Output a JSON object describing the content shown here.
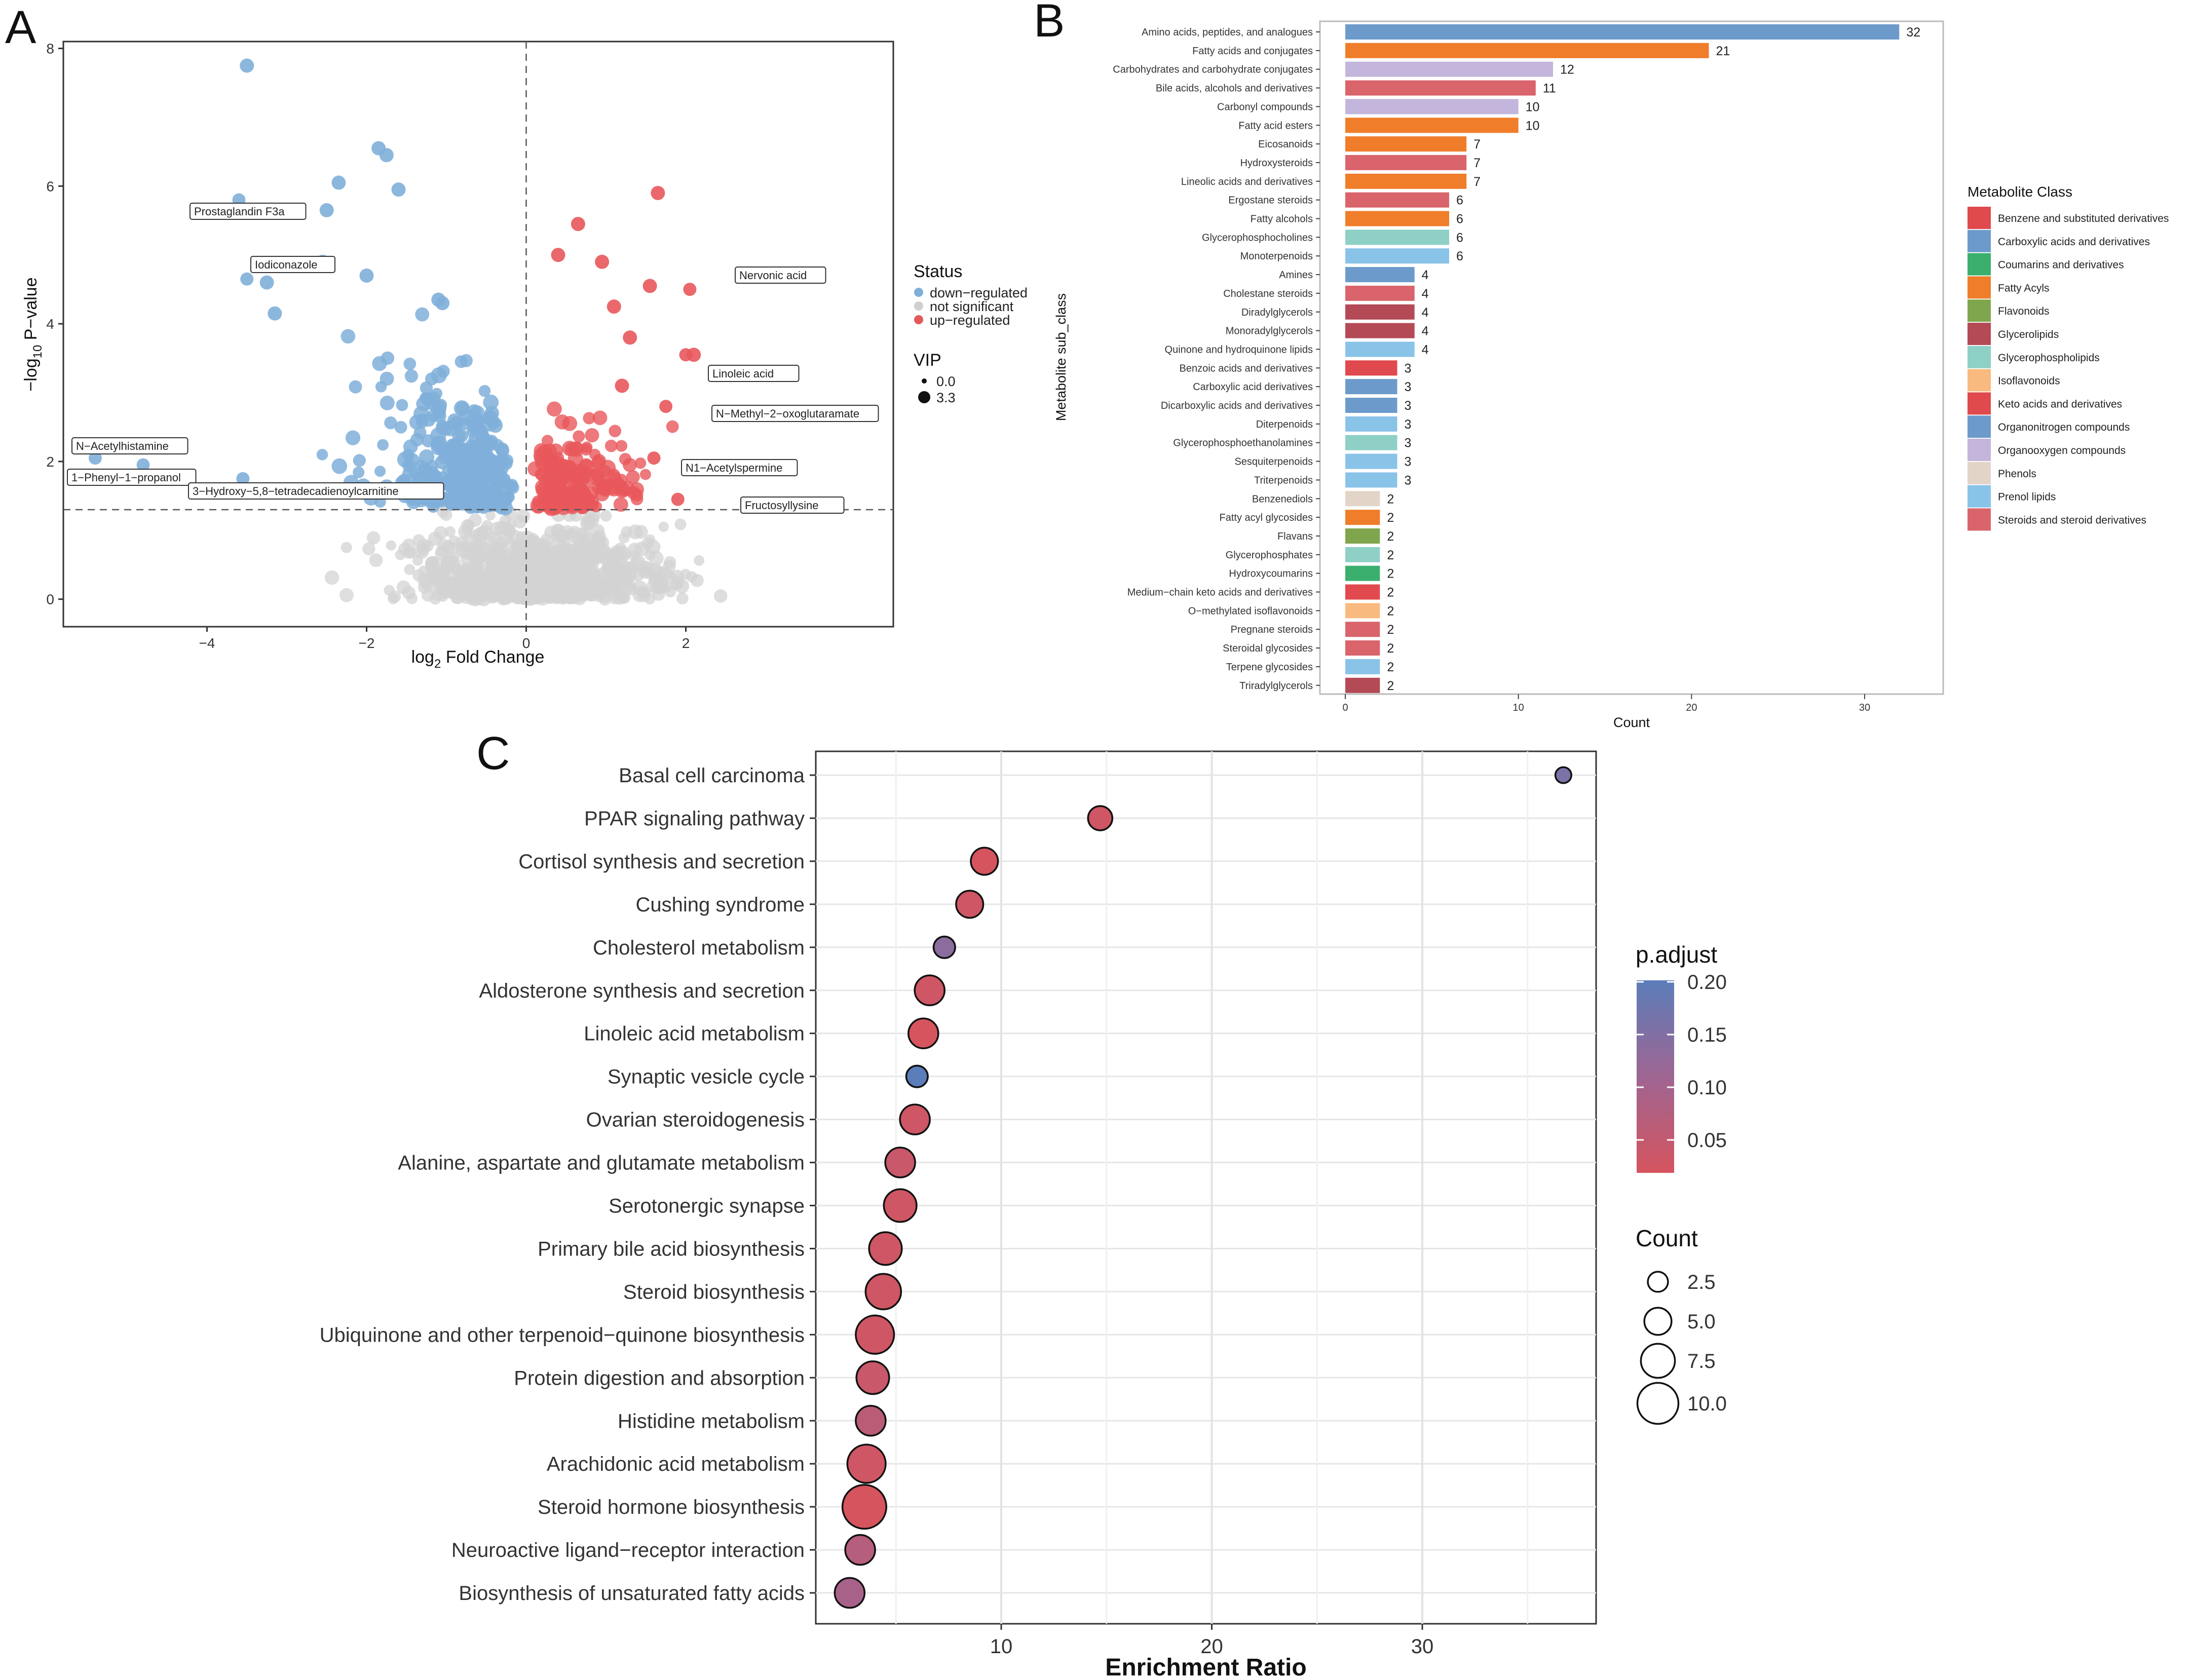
{
  "panel_letters": [
    "A",
    "B",
    "C"
  ],
  "chart_data": [
    {
      "panel": "A",
      "type": "scatter",
      "title": "",
      "xlabel": "log2 Fold Change",
      "xlabel_main": "log",
      "xlabel_sub": "2",
      "xlabel_rest": " Fold Change",
      "ylabel": "-log10 P-value",
      "ylabel_main": "−log",
      "ylabel_sub": "10",
      "ylabel_rest": " P−value",
      "xlim": [
        -5.8,
        4.6
      ],
      "ylim": [
        -0.4,
        8.1
      ],
      "xticks": [
        -4,
        -2,
        0,
        2
      ],
      "xtick_labels": [
        "−4",
        "−2",
        "0",
        "2"
      ],
      "yticks": [
        0,
        2,
        4,
        6,
        8
      ],
      "fc_threshold": 0,
      "p_threshold": 1.3,
      "legend": {
        "status_title": "Status",
        "status_items": [
          {
            "label": "down−regulated",
            "color": "#7FAFD9"
          },
          {
            "label": "not significant",
            "color": "#D0D0D0"
          },
          {
            "label": "up−regulated",
            "color": "#E3595B"
          }
        ],
        "vip_title": "VIP",
        "vip_items": [
          "0.0",
          "3.3"
        ]
      },
      "colors": {
        "down": "#7FAFD9",
        "ns": "#D3D3D3",
        "up": "#E8585B"
      },
      "labeled_points": [
        {
          "label": "Prostaglandin F3a",
          "x": -3.6,
          "y": 5.8
        },
        {
          "label": "Iodiconazole",
          "x": -3.5,
          "y": 4.65
        },
        {
          "label": "N−Acetylhistamine",
          "x": -5.4,
          "y": 2.05
        },
        {
          "label": "1−Phenyl−1−propanol",
          "x": -4.8,
          "y": 1.95
        },
        {
          "label": "3−Hydroxy−5,8−tetradecadienoylcarnitine",
          "x": -3.55,
          "y": 1.75
        },
        {
          "label": "Nervonic acid",
          "x": 2.05,
          "y": 4.5
        },
        {
          "label": "Linoleic acid",
          "x": 2.0,
          "y": 3.55
        },
        {
          "label": "N−Methyl−2−oxoglutaramate",
          "x": 1.75,
          "y": 2.8
        },
        {
          "label": "N1−Acetylspermine",
          "x": 1.6,
          "y": 2.05
        },
        {
          "label": "Fructosyllysine",
          "x": 1.9,
          "y": 1.45
        }
      ],
      "highlight_points": [
        {
          "x": -3.5,
          "y": 7.75,
          "status": "down"
        },
        {
          "x": -1.85,
          "y": 6.55,
          "status": "down"
        },
        {
          "x": -1.75,
          "y": 6.45,
          "status": "down"
        },
        {
          "x": -2.35,
          "y": 6.05,
          "status": "down"
        },
        {
          "x": -1.6,
          "y": 5.95,
          "status": "down"
        },
        {
          "x": -2.5,
          "y": 5.65,
          "status": "down"
        },
        {
          "x": -2.55,
          "y": 4.9,
          "status": "down"
        },
        {
          "x": -3.25,
          "y": 4.6,
          "status": "down"
        },
        {
          "x": -3.15,
          "y": 4.15,
          "status": "down"
        },
        {
          "x": -2.0,
          "y": 4.7,
          "status": "down"
        },
        {
          "x": -1.1,
          "y": 4.35,
          "status": "down"
        },
        {
          "x": -1.05,
          "y": 4.3,
          "status": "down"
        },
        {
          "x": 1.65,
          "y": 5.9,
          "status": "up"
        },
        {
          "x": 0.65,
          "y": 5.45,
          "status": "up"
        },
        {
          "x": 0.4,
          "y": 5.0,
          "status": "up"
        },
        {
          "x": 0.95,
          "y": 4.9,
          "status": "up"
        },
        {
          "x": 1.55,
          "y": 4.55,
          "status": "up"
        },
        {
          "x": 1.1,
          "y": 4.25,
          "status": "up"
        },
        {
          "x": 1.3,
          "y": 3.8,
          "status": "up"
        },
        {
          "x": 2.1,
          "y": 3.55,
          "status": "up"
        },
        {
          "x": 1.2,
          "y": 3.1,
          "status": "up"
        }
      ]
    },
    {
      "panel": "B",
      "type": "bar",
      "orientation": "horizontal",
      "title": "",
      "xlabel": "Count",
      "ylabel": "Metabolite sub_class",
      "xlim": [
        0,
        34
      ],
      "xticks": [
        0,
        10,
        20,
        30
      ],
      "categories": [
        "Amino acids, peptides, and analogues",
        "Fatty acids and conjugates",
        "Carbohydrates and carbohydrate conjugates",
        "Bile acids, alcohols and derivatives",
        "Carbonyl compounds",
        "Fatty acid esters",
        "Eicosanoids",
        "Hydroxysteroids",
        "Lineolic acids and derivatives",
        "Ergostane steroids",
        "Fatty alcohols",
        "Glycerophosphocholines",
        "Monoterpenoids",
        "Amines",
        "Cholestane steroids",
        "Diradylglycerols",
        "Monoradylglycerols",
        "Quinone and hydroquinone lipids",
        "Benzoic acids and derivatives",
        "Carboxylic acid derivatives",
        "Dicarboxylic acids and derivatives",
        "Diterpenoids",
        "Glycerophosphoethanolamines",
        "Sesquiterpenoids",
        "Triterpenoids",
        "Benzenediols",
        "Fatty acyl glycosides",
        "Flavans",
        "Glycerophosphates",
        "Hydroxycoumarins",
        "Medium−chain keto acids and derivatives",
        "O−methylated isoflavonoids",
        "Pregnane steroids",
        "Steroidal glycosides",
        "Terpene glycosides",
        "Triradylglycerols"
      ],
      "values": [
        32,
        21,
        12,
        11,
        10,
        10,
        7,
        7,
        7,
        6,
        6,
        6,
        6,
        4,
        4,
        4,
        4,
        4,
        3,
        3,
        3,
        3,
        3,
        3,
        3,
        2,
        2,
        2,
        2,
        2,
        2,
        2,
        2,
        2,
        2,
        2
      ],
      "bar_colors": [
        "#6C9BCB",
        "#F07D2A",
        "#C3B5DB",
        "#D9646B",
        "#C3B5DB",
        "#F07D2A",
        "#F07D2A",
        "#D9646B",
        "#F07D2A",
        "#D9646B",
        "#F07D2A",
        "#8ED0C6",
        "#8AC3E8",
        "#6C9BCB",
        "#D9646B",
        "#B44A55",
        "#B44A55",
        "#8AC3E8",
        "#E0494D",
        "#6C9BCB",
        "#6C9BCB",
        "#8AC3E8",
        "#8ED0C6",
        "#8AC3E8",
        "#8AC3E8",
        "#E3D4C8",
        "#F07D2A",
        "#7FA64C",
        "#8ED0C6",
        "#3BAF6E",
        "#E0494D",
        "#F8BA7E",
        "#D9646B",
        "#D9646B",
        "#8AC3E8",
        "#B44A55"
      ],
      "legend_title": "Metabolite Class",
      "legend": [
        {
          "label": "Benzene and substituted derivatives",
          "color": "#E0494D"
        },
        {
          "label": "Carboxylic acids and derivatives",
          "color": "#6C9BCB"
        },
        {
          "label": "Coumarins and derivatives",
          "color": "#3BAF6E"
        },
        {
          "label": "Fatty Acyls",
          "color": "#F07D2A"
        },
        {
          "label": "Flavonoids",
          "color": "#7FA64C"
        },
        {
          "label": "Glycerolipids",
          "color": "#B44A55"
        },
        {
          "label": "Glycerophospholipids",
          "color": "#8ED0C6"
        },
        {
          "label": "Isoflavonoids",
          "color": "#F8BA7E"
        },
        {
          "label": "Keto acids and derivatives",
          "color": "#E0494D"
        },
        {
          "label": "Organonitrogen compounds",
          "color": "#6C9BCB"
        },
        {
          "label": "Organooxygen compounds",
          "color": "#C3B5DB"
        },
        {
          "label": "Phenols",
          "color": "#E3D4C8"
        },
        {
          "label": "Prenol lipids",
          "color": "#8AC3E8"
        },
        {
          "label": "Steroids and steroid derivatives",
          "color": "#D9646B"
        }
      ]
    },
    {
      "panel": "C",
      "type": "scatter",
      "subtype": "dot-plot",
      "title": "",
      "xlabel": "Enrichment Ratio",
      "ylabel": "",
      "xlim": [
        2.2,
        38.5
      ],
      "xticks": [
        10,
        20,
        30
      ],
      "categories": [
        "Basal cell carcinoma",
        "PPAR signaling pathway",
        "Cortisol synthesis and secretion",
        "Cushing syndrome",
        "Cholesterol metabolism",
        "Aldosterone synthesis and secretion",
        "Linoleic acid metabolism",
        "Synaptic vesicle cycle",
        "Ovarian steroidogenesis",
        "Alanine, aspartate and glutamate metabolism",
        "Serotonergic synapse",
        "Primary bile acid biosynthesis",
        "Steroid biosynthesis",
        "Ubiquinone and other terpenoid−quinone biosynthesis",
        "Protein digestion and absorption",
        "Histidine metabolism",
        "Arachidonic acid metabolism",
        "Steroid hormone biosynthesis",
        "Neuroactive ligand−receptor interaction",
        "Biosynthesis of unsaturated fatty acids"
      ],
      "enrichment_ratio": [
        36.7,
        14.7,
        9.2,
        8.5,
        7.3,
        6.6,
        6.3,
        6.0,
        5.9,
        5.2,
        5.2,
        4.5,
        4.4,
        4.0,
        3.9,
        3.8,
        3.6,
        3.5,
        3.3,
        2.8
      ],
      "count": [
        1,
        4,
        5,
        5,
        3,
        6,
        6,
        3,
        6,
        6,
        7,
        7,
        8,
        9,
        7,
        6,
        9,
        11,
        6,
        6
      ],
      "p_adjust": [
        0.16,
        0.04,
        0.03,
        0.04,
        0.14,
        0.04,
        0.03,
        0.2,
        0.04,
        0.05,
        0.04,
        0.04,
        0.04,
        0.04,
        0.05,
        0.07,
        0.04,
        0.03,
        0.08,
        0.1
      ],
      "color_legend_title": "p.adjust",
      "color_ticks": [
        "0.20",
        "0.15",
        "0.10",
        "0.05"
      ],
      "color_low": "#D5545E",
      "color_high": "#5B7DB9",
      "size_legend_title": "Count",
      "size_legend_values": [
        "2.5",
        "5.0",
        "7.5",
        "10.0"
      ]
    }
  ]
}
